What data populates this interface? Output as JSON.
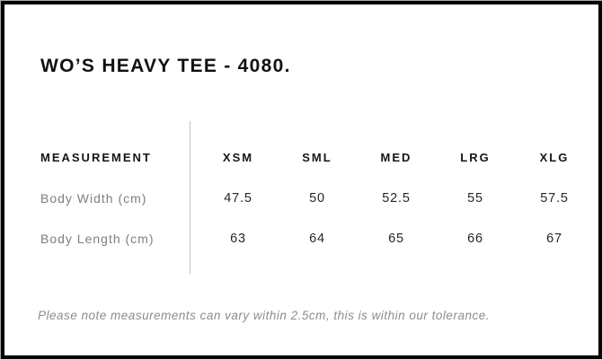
{
  "card": {
    "title": "WO’S HEAVY TEE - 4080.",
    "note": "Please note measurements can vary within 2.5cm, this is within our tolerance."
  },
  "table": {
    "measurement_header": "MEASUREMENT",
    "size_headers": [
      "XSM",
      "SML",
      "MED",
      "LRG",
      "XLG"
    ],
    "rows": [
      {
        "label": "Body Width (cm)",
        "values": [
          "47.5",
          "50",
          "52.5",
          "55",
          "57.5"
        ]
      },
      {
        "label": "Body Length (cm)",
        "values": [
          "63",
          "64",
          "65",
          "66",
          "67"
        ]
      }
    ]
  },
  "colors": {
    "border": "#050505",
    "divider": "#c5c5c5",
    "heading_text": "#161616",
    "title_text": "#111111",
    "label_text": "#7e7e7e",
    "value_text": "#252525",
    "note_text": "#8c8c8c"
  }
}
